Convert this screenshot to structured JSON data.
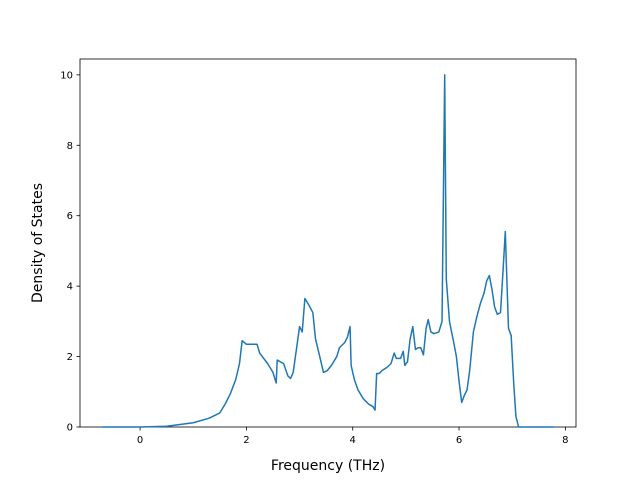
{
  "chart_data": {
    "type": "line",
    "xlabel": "Frequency (THz)",
    "ylabel": "Density of States",
    "x": [
      -0.71,
      0,
      0.5,
      1.0,
      1.3,
      1.5,
      1.6,
      1.7,
      1.8,
      1.87,
      1.92,
      2.0,
      2.1,
      2.2,
      2.25,
      2.4,
      2.5,
      2.56,
      2.58,
      2.7,
      2.78,
      2.83,
      2.88,
      2.95,
      3.0,
      3.05,
      3.1,
      3.18,
      3.25,
      3.3,
      3.38,
      3.45,
      3.52,
      3.6,
      3.7,
      3.75,
      3.85,
      3.9,
      3.95,
      3.97,
      4.03,
      4.1,
      4.2,
      4.3,
      4.38,
      4.42,
      4.45,
      4.5,
      4.55,
      4.65,
      4.72,
      4.78,
      4.82,
      4.9,
      4.95,
      4.98,
      5.03,
      5.08,
      5.13,
      5.18,
      5.23,
      5.28,
      5.33,
      5.38,
      5.42,
      5.47,
      5.53,
      5.62,
      5.68,
      5.73,
      5.76,
      5.82,
      5.9,
      5.95,
      6.0,
      6.05,
      6.1,
      6.15,
      6.2,
      6.27,
      6.33,
      6.4,
      6.47,
      6.52,
      6.57,
      6.62,
      6.67,
      6.72,
      6.78,
      6.83,
      6.87,
      6.93,
      6.98,
      7.03,
      7.07,
      7.12,
      7.5,
      7.78
    ],
    "series": [
      {
        "name": "DOS",
        "color": "#1f77b4",
        "values": [
          0,
          0,
          0.02,
          0.12,
          0.25,
          0.4,
          0.65,
          0.95,
          1.35,
          1.8,
          2.45,
          2.35,
          2.35,
          2.35,
          2.1,
          1.8,
          1.55,
          1.25,
          1.9,
          1.8,
          1.45,
          1.38,
          1.55,
          2.3,
          2.85,
          2.7,
          3.65,
          3.45,
          3.25,
          2.5,
          2.0,
          1.55,
          1.6,
          1.75,
          2.0,
          2.25,
          2.4,
          2.55,
          2.85,
          1.75,
          1.35,
          1.05,
          0.8,
          0.65,
          0.58,
          0.48,
          1.52,
          1.52,
          1.6,
          1.7,
          1.8,
          2.1,
          1.95,
          1.95,
          2.15,
          1.75,
          1.85,
          2.5,
          2.85,
          2.2,
          2.25,
          2.25,
          2.05,
          2.8,
          3.05,
          2.7,
          2.65,
          2.7,
          3.0,
          10.0,
          4.2,
          3.0,
          2.4,
          2.0,
          1.3,
          0.7,
          0.9,
          1.05,
          1.6,
          2.7,
          3.1,
          3.5,
          3.8,
          4.15,
          4.3,
          3.9,
          3.4,
          3.2,
          3.25,
          4.5,
          5.55,
          2.8,
          2.6,
          1.2,
          0.3,
          0,
          0,
          0
        ]
      }
    ],
    "xlim": [
      -1.13,
      8.2
    ],
    "xticks": [
      0,
      2,
      4,
      6,
      8
    ],
    "ylim": [
      0,
      10.45
    ],
    "yticks": [
      0,
      2,
      4,
      6,
      8,
      10
    ]
  }
}
